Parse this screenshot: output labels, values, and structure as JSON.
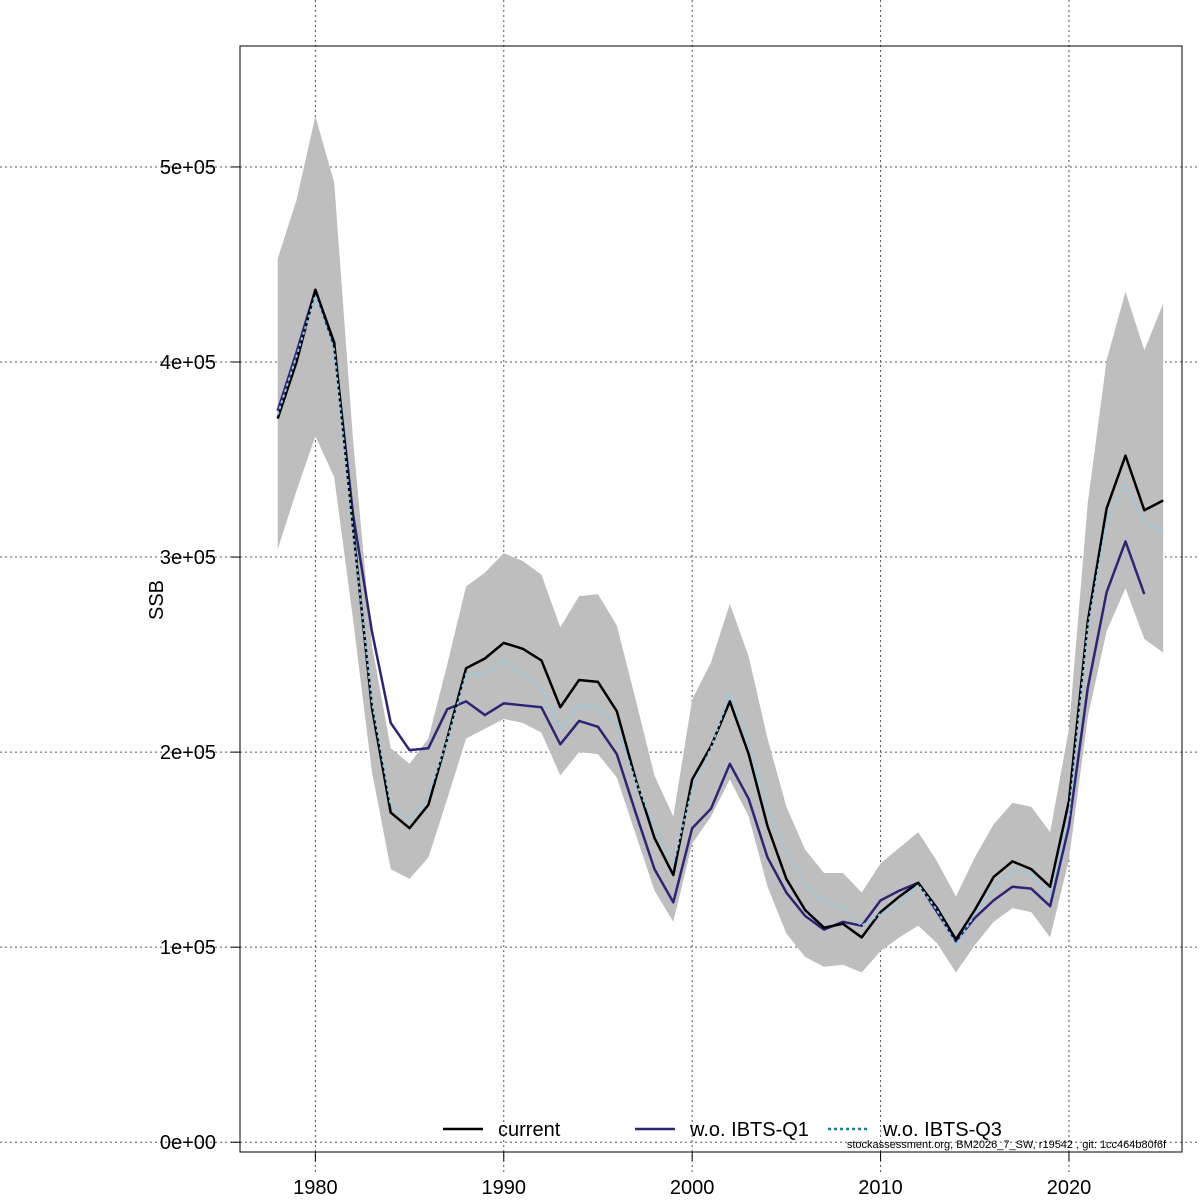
{
  "chart_data": {
    "type": "line",
    "title": "",
    "xlabel": "",
    "ylabel": "SSB",
    "xlim": [
      1976,
      2026
    ],
    "ylim": [
      -5000,
      562000
    ],
    "grid": true,
    "legend_position": "bottom",
    "footer": "stockassessment.org, BM2026_7_SW, r19542 , git: 1cc464b80f6f",
    "x_ticks": [
      1980,
      1990,
      2000,
      2010,
      2020
    ],
    "x_tick_labels": [
      "1980",
      "1990",
      "2000",
      "2010",
      "2020"
    ],
    "y_ticks": [
      0,
      100000,
      200000,
      300000,
      400000,
      500000
    ],
    "y_tick_labels": [
      "0e+00",
      "1e+05",
      "2e+05",
      "3e+05",
      "4e+05",
      "5e+05"
    ],
    "years": [
      1978,
      1979,
      1980,
      1981,
      1982,
      1983,
      1984,
      1985,
      1986,
      1987,
      1988,
      1989,
      1990,
      1991,
      1992,
      1993,
      1994,
      1995,
      1996,
      1997,
      1998,
      1999,
      2000,
      2001,
      2002,
      2003,
      2004,
      2005,
      2006,
      2007,
      2008,
      2009,
      2010,
      2011,
      2012,
      2013,
      2014,
      2015,
      2016,
      2017,
      2018,
      2019,
      2020,
      2021,
      2022,
      2023,
      2024,
      2025
    ],
    "confidence_band": {
      "upper": [
        453000,
        483000,
        526000,
        492000,
        360000,
        255000,
        202000,
        194000,
        207000,
        245000,
        285000,
        292000,
        302000,
        298000,
        291000,
        264000,
        280000,
        281000,
        265000,
        227000,
        188000,
        167000,
        227000,
        246000,
        276000,
        249000,
        207000,
        172000,
        150000,
        138000,
        138000,
        128000,
        143000,
        151000,
        159000,
        144000,
        126000,
        146000,
        163000,
        174000,
        172000,
        159000,
        212000,
        328000,
        401000,
        436000,
        406000,
        430000
      ],
      "lower": [
        304000,
        334000,
        362000,
        341000,
        268000,
        190000,
        140000,
        135000,
        146000,
        176000,
        207000,
        212000,
        217000,
        215000,
        210000,
        188000,
        200000,
        199000,
        187000,
        158000,
        129000,
        113000,
        153000,
        167000,
        186000,
        167000,
        131000,
        107000,
        95000,
        90000,
        91000,
        87000,
        98000,
        105000,
        111000,
        102000,
        87000,
        101000,
        113000,
        120000,
        118000,
        105000,
        145000,
        218000,
        262000,
        284000,
        258000,
        251000
      ]
    },
    "series": [
      {
        "name": "current",
        "color": "#000000",
        "values": [
          371000,
          400000,
          437000,
          410000,
          315000,
          223000,
          169000,
          161000,
          173000,
          207000,
          243000,
          248000,
          256000,
          253000,
          247000,
          223000,
          237000,
          236000,
          221000,
          186000,
          156000,
          137000,
          186000,
          203000,
          226000,
          199000,
          162000,
          135000,
          119000,
          110000,
          112000,
          105000,
          118000,
          126000,
          133000,
          120000,
          104000,
          119000,
          136000,
          144000,
          140000,
          131000,
          175000,
          267000,
          325000,
          352000,
          324000,
          329000
        ]
      },
      {
        "name": "w.o. IBTS-Q1",
        "color": "#2c2577",
        "values": [
          375000,
          405000,
          437000,
          408000,
          322000,
          262000,
          215000,
          201000,
          202000,
          222000,
          226000,
          219000,
          225000,
          224000,
          223000,
          204000,
          216000,
          213000,
          199000,
          169000,
          140000,
          123000,
          161000,
          171000,
          194000,
          176000,
          146000,
          128000,
          116000,
          109000,
          113000,
          111000,
          124000,
          129000,
          133000,
          118000,
          103000,
          115000,
          124000,
          131000,
          130000,
          121000,
          162000,
          233000,
          282000,
          308000,
          281000,
          null
        ]
      },
      {
        "name": "w.o. IBTS-Q3",
        "color": "#87ceeb",
        "values": [
          373000,
          403000,
          434000,
          406000,
          313000,
          226000,
          173000,
          165000,
          178000,
          206000,
          240000,
          240000,
          247000,
          240000,
          232000,
          212000,
          224000,
          223000,
          213000,
          185000,
          162000,
          143000,
          181000,
          202000,
          230000,
          205000,
          172000,
          149000,
          132000,
          124000,
          120000,
          111000,
          117000,
          122000,
          132000,
          119000,
          101000,
          117000,
          130000,
          139000,
          138000,
          126000,
          168000,
          264000,
          318000,
          338000,
          318000,
          313000
        ]
      }
    ]
  }
}
